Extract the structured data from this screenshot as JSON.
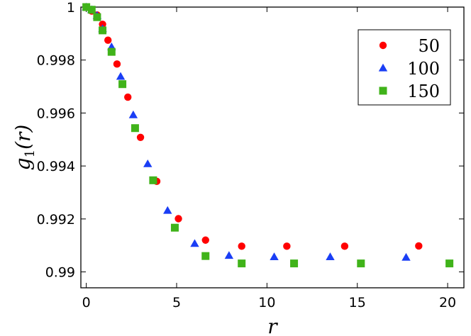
{
  "chart_data": {
    "type": "scatter",
    "title": "",
    "xlabel": "r",
    "ylabel": "g1(r)",
    "ylabel_main": "g",
    "ylabel_sub": "1",
    "ylabel_arg": "(r)",
    "xlim": [
      -0.3,
      20.9
    ],
    "ylim": [
      0.9894,
      1.0
    ],
    "xticks": [
      0,
      5,
      10,
      15,
      20
    ],
    "xtick_labels": [
      "0",
      "5",
      "10",
      "15",
      "20"
    ],
    "yticks": [
      0.99,
      0.992,
      0.994,
      0.996,
      0.998,
      1.0
    ],
    "ytick_labels": [
      "0.99",
      "0.992",
      "0.994",
      "0.996",
      "0.998",
      "1"
    ],
    "grid": false,
    "legend_position": "top-right",
    "series": [
      {
        "name": "50",
        "marker": "circle",
        "color": "#ff0000",
        "x": [
          0,
          0.3,
          0.6,
          0.9,
          1.2,
          1.7,
          2.3,
          3.0,
          3.9,
          5.1,
          6.6,
          8.6,
          11.1,
          14.3,
          18.4
        ],
        "y": [
          1.0,
          0.99985,
          0.9997,
          0.99935,
          0.99875,
          0.99785,
          0.9966,
          0.99508,
          0.99342,
          0.99201,
          0.9912,
          0.99097,
          0.99097,
          0.99097,
          0.99098
        ]
      },
      {
        "name": "100",
        "marker": "triangle",
        "color": "#1a3ef5",
        "x": [
          0,
          0.3,
          0.6,
          0.9,
          1.4,
          1.9,
          2.6,
          3.4,
          4.5,
          6.0,
          7.9,
          10.4,
          13.5,
          17.7
        ],
        "y": [
          1.0,
          0.9999,
          0.99968,
          0.99918,
          0.9985,
          0.99738,
          0.99593,
          0.99408,
          0.99232,
          0.99107,
          0.99062,
          0.99057,
          0.99057,
          0.99055
        ]
      },
      {
        "name": "150",
        "marker": "square",
        "color": "#40b31a",
        "x": [
          0,
          0.3,
          0.6,
          0.9,
          1.4,
          2.0,
          2.7,
          3.7,
          4.9,
          6.6,
          8.6,
          11.5,
          15.2,
          20.1
        ],
        "y": [
          1.0,
          0.9999,
          0.99962,
          0.99912,
          0.99831,
          0.99709,
          0.99543,
          0.99346,
          0.99167,
          0.9906,
          0.99032,
          0.99032,
          0.99032,
          0.99032
        ]
      }
    ]
  }
}
